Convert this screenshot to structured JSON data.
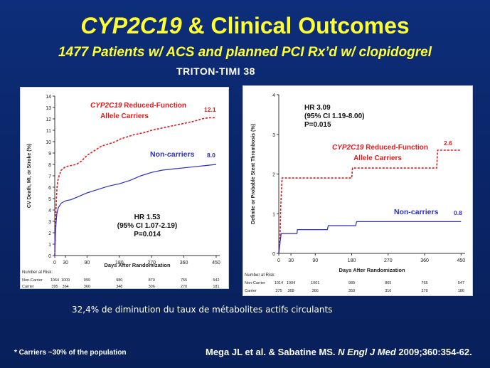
{
  "header": {
    "title_gene": "CYP2C19",
    "title_rest": " & Clinical Outcomes",
    "subtitle": "1477 Patients w/ ACS and planned PCI Rx’d w/ clopidogrel",
    "trial": "TRITON-TIMI 38"
  },
  "note": "32,4% de diminution du taux de métabolites actifs circulants",
  "footnote": "* Carriers ~30% of the population",
  "citation": {
    "authors": "Mega JL et al. & Sabatine MS. ",
    "journal": "N Engl J Med",
    "ref": " 2009;360:354-62."
  },
  "colors": {
    "carrier": "#e31a1c",
    "noncarrier": "#2b2fbf",
    "axis": "#333333"
  },
  "chart_data": [
    {
      "type": "line",
      "title": "",
      "xlabel": "Days After Randomization",
      "ylabel": "CV Death, MI, or Stroke (%)",
      "xlim": [
        0,
        460
      ],
      "ylim": [
        0,
        14
      ],
      "xticks": [
        0,
        30,
        90,
        180,
        270,
        360,
        450
      ],
      "yticks": [
        0,
        1,
        2,
        3,
        4,
        5,
        6,
        7,
        8,
        9,
        10,
        11,
        12,
        13,
        14
      ],
      "series": [
        {
          "gene": "CYP2C19",
          "name_rest": " Reduced-Function",
          "name_line2": "Allele Carriers",
          "style": "dashed",
          "end_label": "12.1",
          "points": [
            [
              0,
              0
            ],
            [
              2,
              2.5
            ],
            [
              4,
              4.5
            ],
            [
              6,
              5.8
            ],
            [
              8,
              6.5
            ],
            [
              12,
              7.0
            ],
            [
              18,
              7.5
            ],
            [
              30,
              7.8
            ],
            [
              45,
              7.9
            ],
            [
              60,
              8.0
            ],
            [
              75,
              8.3
            ],
            [
              90,
              8.8
            ],
            [
              110,
              9.2
            ],
            [
              130,
              9.6
            ],
            [
              150,
              9.8
            ],
            [
              170,
              10.0
            ],
            [
              180,
              10.2
            ],
            [
              200,
              10.4
            ],
            [
              220,
              10.6
            ],
            [
              250,
              10.8
            ],
            [
              270,
              11.0
            ],
            [
              300,
              11.2
            ],
            [
              330,
              11.4
            ],
            [
              360,
              11.6
            ],
            [
              390,
              11.8
            ],
            [
              410,
              12.0
            ],
            [
              430,
              12.1
            ],
            [
              450,
              12.1
            ]
          ]
        },
        {
          "name": "Non-carriers",
          "style": "solid",
          "end_label": "8.0",
          "points": [
            [
              0,
              0
            ],
            [
              2,
              2.0
            ],
            [
              4,
              3.0
            ],
            [
              6,
              3.7
            ],
            [
              10,
              4.2
            ],
            [
              18,
              4.6
            ],
            [
              30,
              4.8
            ],
            [
              45,
              4.9
            ],
            [
              60,
              5.1
            ],
            [
              90,
              5.5
            ],
            [
              120,
              5.8
            ],
            [
              150,
              6.1
            ],
            [
              180,
              6.3
            ],
            [
              210,
              6.6
            ],
            [
              240,
              7.0
            ],
            [
              270,
              7.3
            ],
            [
              300,
              7.5
            ],
            [
              330,
              7.6
            ],
            [
              360,
              7.7
            ],
            [
              390,
              7.8
            ],
            [
              420,
              7.9
            ],
            [
              450,
              8.0
            ]
          ]
        }
      ],
      "annotation": [
        "HR 1.53",
        "(95% CI 1.07-2.19)",
        "P=0.014"
      ],
      "risk_table": {
        "label": "Number at Risk:",
        "rows": [
          {
            "name": "Non-Carrier",
            "values": [
              "1064",
              "1009",
              "999",
              "980",
              "870",
              "755",
              "542"
            ]
          },
          {
            "name": "Carrier",
            "values": [
              "395",
              "364",
              "360",
              "348",
              "306",
              "270",
              "181"
            ]
          }
        ]
      }
    },
    {
      "type": "line",
      "title": "",
      "xlabel": "Days After Randomization",
      "ylabel": "Definite or Probable Stent Thrombosis (%)",
      "xlim": [
        0,
        460
      ],
      "ylim": [
        0,
        4
      ],
      "xticks": [
        0,
        30,
        90,
        180,
        270,
        360,
        450
      ],
      "yticks": [
        0,
        1,
        2,
        3,
        4
      ],
      "series": [
        {
          "gene": "CYP2C19",
          "name_rest": " Reduced-Function",
          "name_line2": "Allele Carriers",
          "style": "dashed",
          "end_label": "2.6",
          "points": [
            [
              0,
              0
            ],
            [
              3,
              0.4
            ],
            [
              5,
              1.2
            ],
            [
              8,
              1.9
            ],
            [
              180,
              1.9
            ],
            [
              182,
              2.15
            ],
            [
              390,
              2.15
            ],
            [
              392,
              2.6
            ],
            [
              450,
              2.6
            ]
          ]
        },
        {
          "name": "Non-carriers",
          "style": "solid",
          "end_label": "0.8",
          "points": [
            [
              0,
              0
            ],
            [
              2,
              0.15
            ],
            [
              4,
              0.35
            ],
            [
              6,
              0.5
            ],
            [
              45,
              0.5
            ],
            [
              46,
              0.6
            ],
            [
              120,
              0.6
            ],
            [
              122,
              0.7
            ],
            [
              190,
              0.7
            ],
            [
              192,
              0.8
            ],
            [
              450,
              0.8
            ]
          ]
        }
      ],
      "annotation": [
        "HR 3.09",
        "(95% CI 1.19-8.00)",
        "P=0.015"
      ],
      "risk_table": {
        "label": "Number at Risk:",
        "rows": [
          {
            "name": "Non-Carrier",
            "values": [
              "1014",
              "1004",
              "1001",
              "989",
              "865",
              "765",
              "547"
            ]
          },
          {
            "name": "Carrier",
            "values": [
              "375",
              "368",
              "366",
              "359",
              "316",
              "279",
              "186"
            ]
          }
        ]
      }
    }
  ]
}
